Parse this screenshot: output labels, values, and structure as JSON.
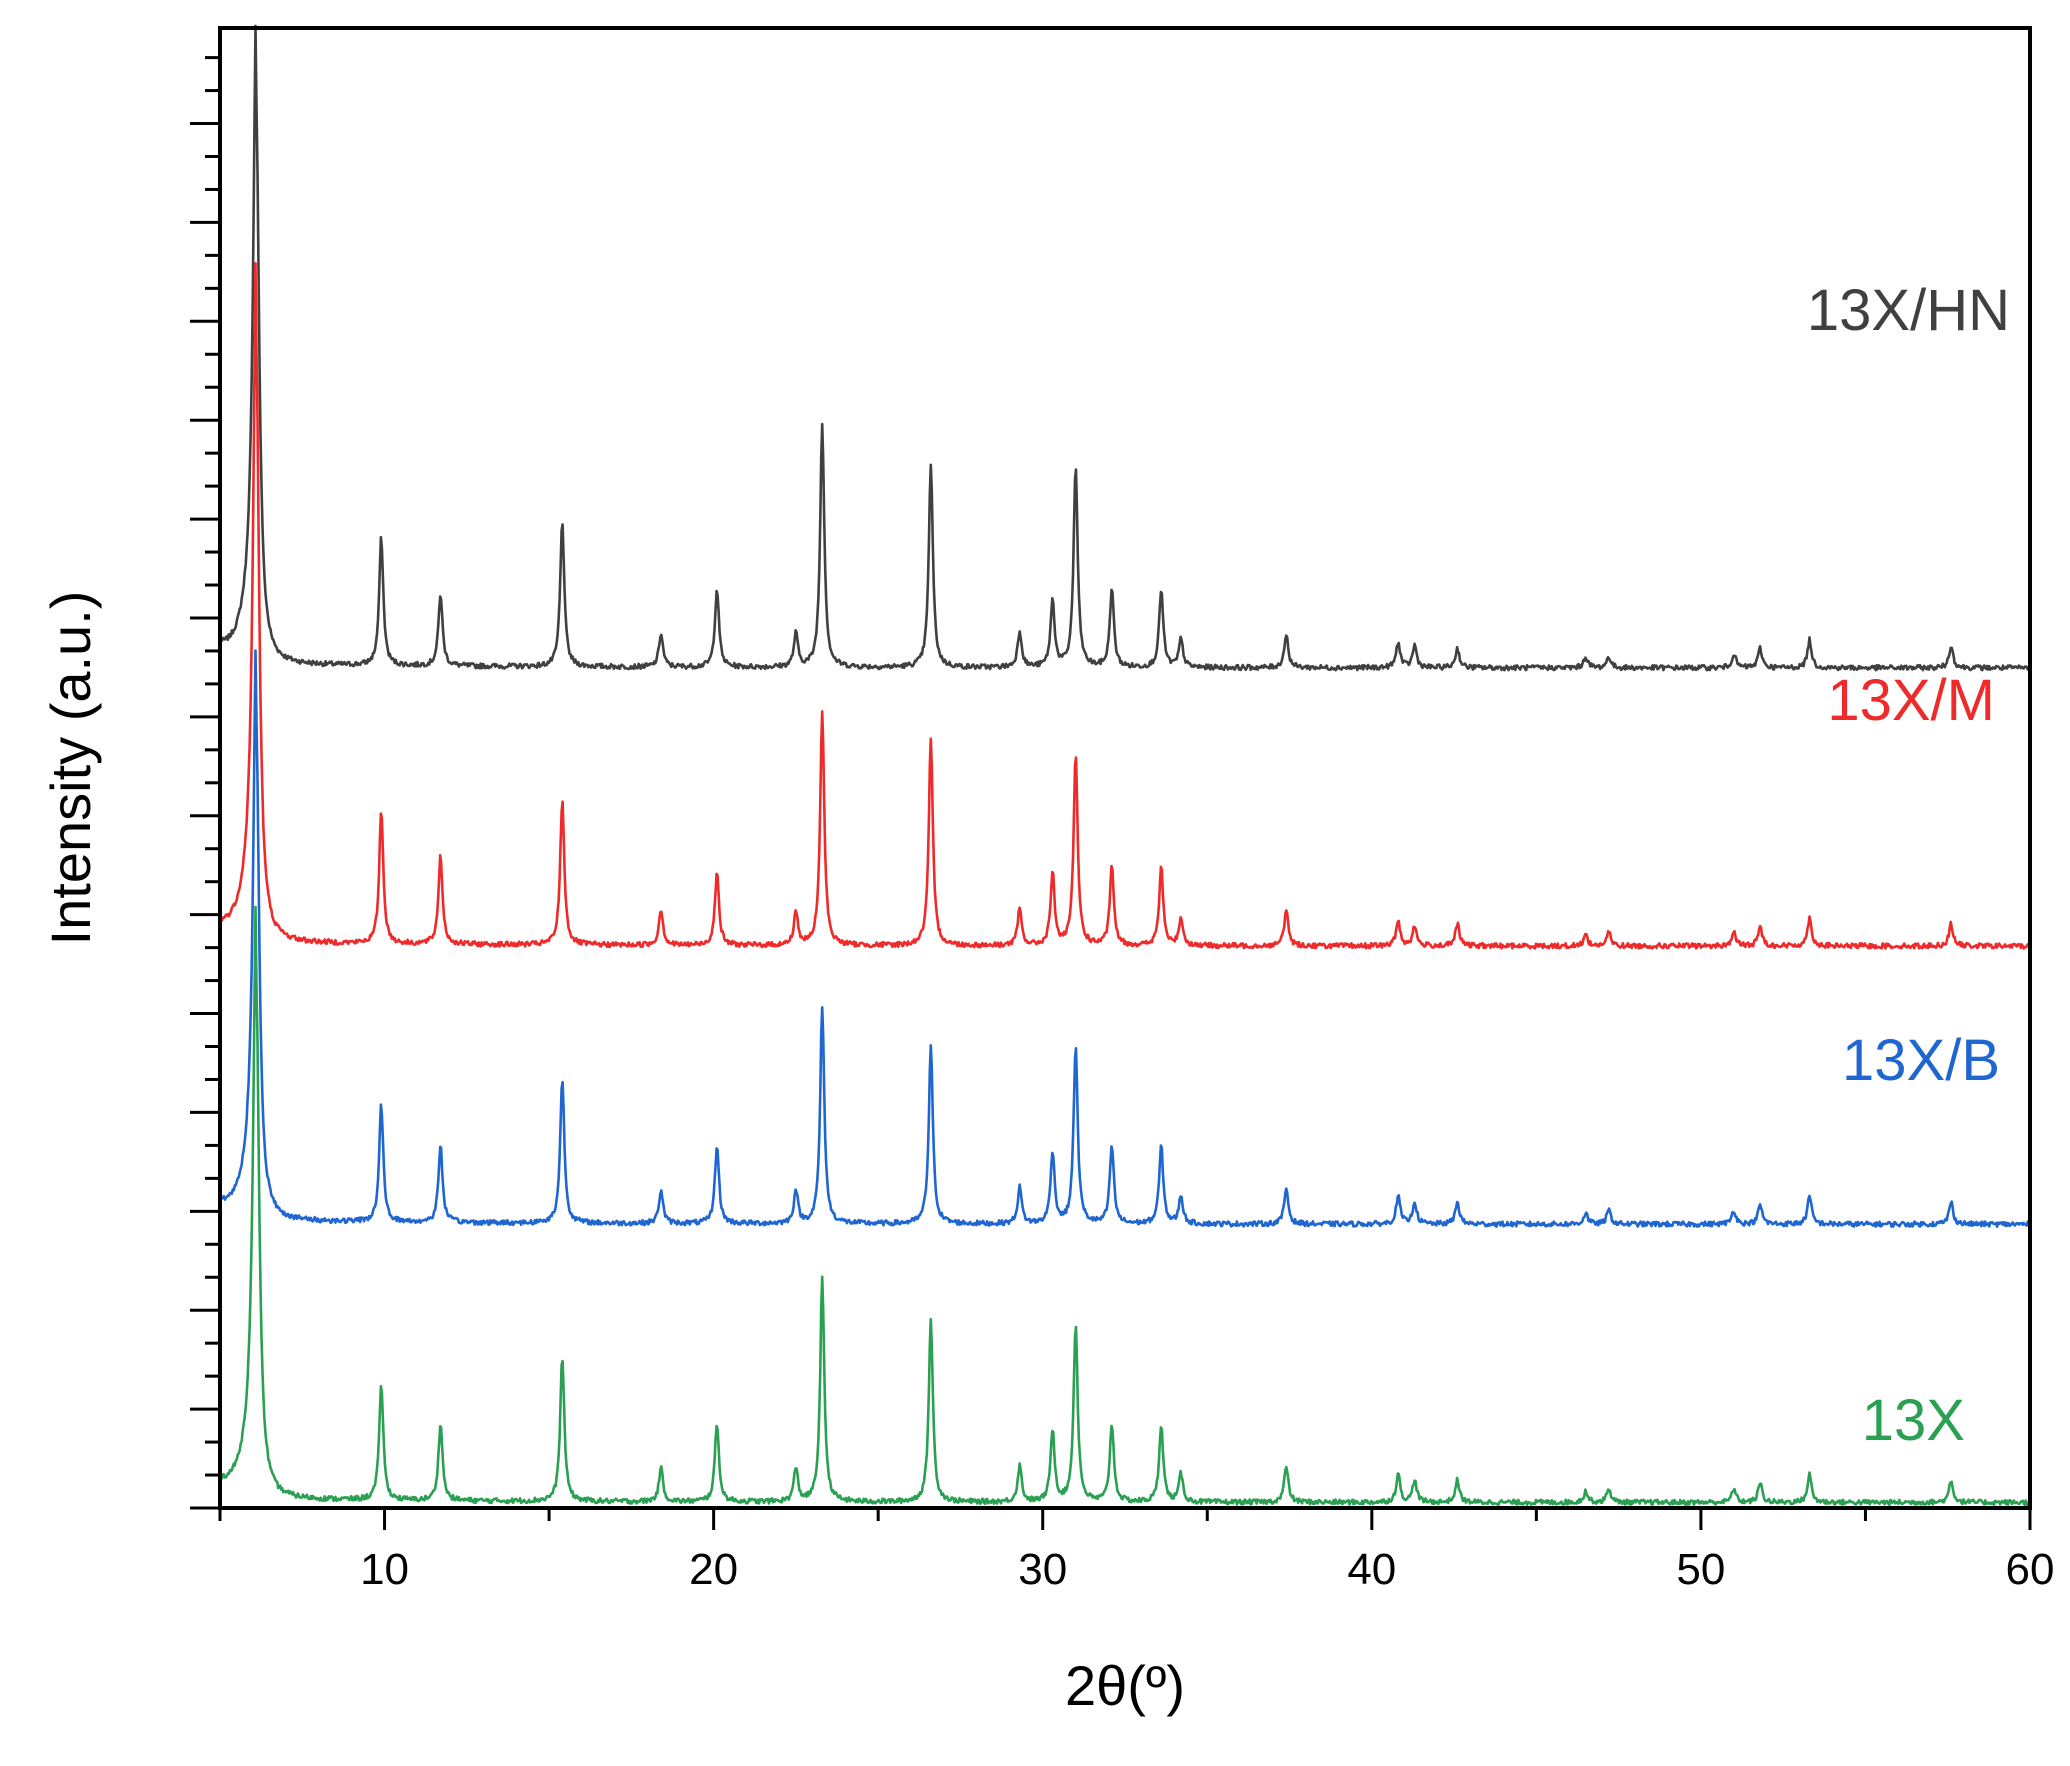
{
  "chart_data": {
    "type": "line",
    "title": "",
    "xlabel": "2θ(º)",
    "ylabel": "Intensity (a.u.)",
    "xlim": [
      5,
      60
    ],
    "xticks": [
      "10",
      "20",
      "30",
      "40",
      "50",
      "60"
    ],
    "ytick_labels": false,
    "stacked_offset": true,
    "grid": false,
    "legend": "inline labels at right of each curve",
    "peaks_2theta": [
      6.1,
      9.9,
      11.7,
      15.4,
      18.4,
      20.1,
      22.5,
      23.3,
      26.6,
      29.3,
      30.3,
      31.0,
      32.1,
      33.6,
      34.2,
      37.4,
      40.8,
      41.3,
      42.6,
      46.5,
      47.2,
      51.0,
      51.8,
      53.3,
      57.6
    ],
    "series": [
      {
        "name": "13X/HN",
        "color": "#404040",
        "baseline": 3.0,
        "peak_heights": [
          2.02,
          0.46,
          0.26,
          0.52,
          0.12,
          0.28,
          0.12,
          0.88,
          0.73,
          0.13,
          0.24,
          0.72,
          0.28,
          0.28,
          0.1,
          0.12,
          0.09,
          0.08,
          0.07,
          0.04,
          0.04,
          0.05,
          0.07,
          0.1,
          0.08
        ]
      },
      {
        "name": "13X/M",
        "color": "#ee2a2a",
        "baseline": 2.0,
        "peak_heights": [
          2.14,
          0.48,
          0.32,
          0.52,
          0.13,
          0.26,
          0.12,
          0.84,
          0.74,
          0.13,
          0.26,
          0.68,
          0.28,
          0.28,
          0.1,
          0.13,
          0.09,
          0.07,
          0.08,
          0.04,
          0.05,
          0.05,
          0.07,
          0.1,
          0.08
        ]
      },
      {
        "name": "13X/B",
        "color": "#1f66d1",
        "baseline": 1.0,
        "peak_heights": [
          1.8,
          0.42,
          0.28,
          0.52,
          0.12,
          0.28,
          0.12,
          0.78,
          0.64,
          0.13,
          0.26,
          0.64,
          0.28,
          0.28,
          0.1,
          0.13,
          0.1,
          0.08,
          0.08,
          0.04,
          0.05,
          0.05,
          0.07,
          0.1,
          0.08
        ]
      },
      {
        "name": "13X",
        "color": "#2aa052",
        "baseline": 0.0,
        "peak_heights": [
          1.86,
          0.42,
          0.28,
          0.52,
          0.12,
          0.28,
          0.12,
          0.8,
          0.66,
          0.13,
          0.26,
          0.64,
          0.28,
          0.28,
          0.1,
          0.13,
          0.1,
          0.08,
          0.08,
          0.04,
          0.05,
          0.05,
          0.07,
          0.1,
          0.08
        ]
      }
    ]
  }
}
